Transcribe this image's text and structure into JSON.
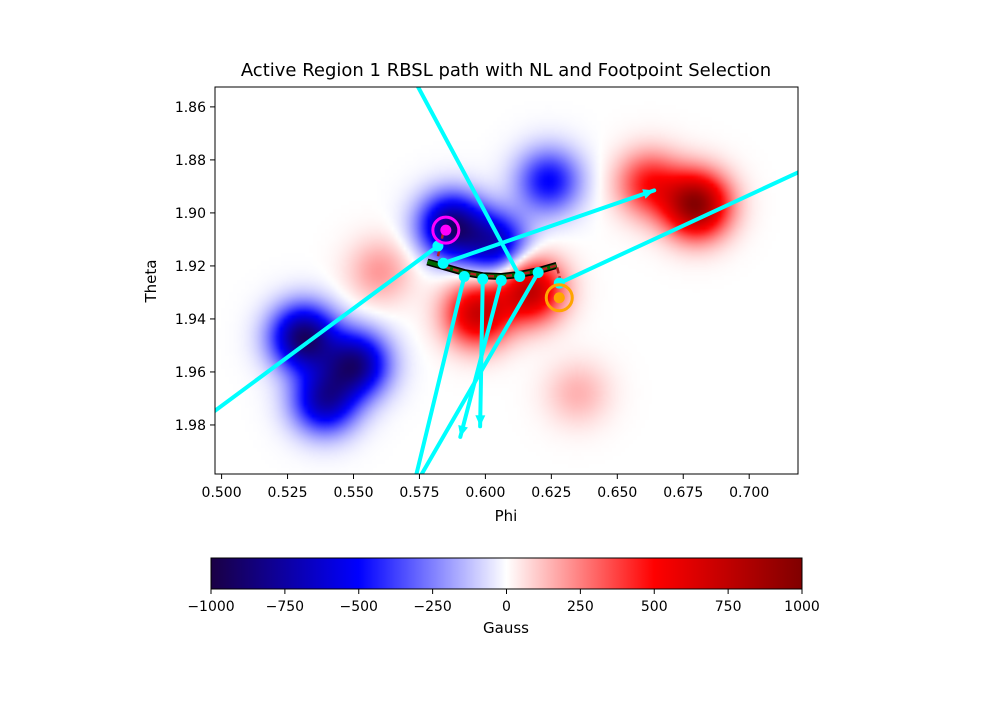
{
  "chart_data": {
    "type": "heatmap",
    "title": "Active Region 1 RBSL path with NL and Footpoint Selection",
    "xlabel": "Phi",
    "ylabel": "Theta",
    "xlim": [
      0.4975,
      0.7185
    ],
    "ylim": [
      1.9985,
      1.8525
    ],
    "y_axis_inverted": true,
    "x_ticks": [
      "0.500",
      "0.525",
      "0.550",
      "0.575",
      "0.600",
      "0.625",
      "0.650",
      "0.675",
      "0.700"
    ],
    "y_ticks": [
      "1.86",
      "1.88",
      "1.90",
      "1.92",
      "1.94",
      "1.96",
      "1.98"
    ],
    "grid": false,
    "colormap": "seismic",
    "colorbar": {
      "label": "Gauss",
      "min": -1000,
      "max": 1000,
      "ticks": [
        "−1000",
        "−750",
        "−500",
        "−250",
        "0",
        "250",
        "500",
        "750",
        "1000"
      ],
      "orientation": "horizontal"
    },
    "field_sources": [
      {
        "phi": 0.531,
        "theta": 1.947,
        "gauss": -900
      },
      {
        "phi": 0.551,
        "theta": 1.957,
        "gauss": -800
      },
      {
        "phi": 0.539,
        "theta": 1.971,
        "gauss": -700
      },
      {
        "phi": 0.587,
        "theta": 1.905,
        "gauss": -850
      },
      {
        "phi": 0.604,
        "theta": 1.912,
        "gauss": -650
      },
      {
        "phi": 0.624,
        "theta": 1.888,
        "gauss": -500
      },
      {
        "phi": 0.597,
        "theta": 1.938,
        "gauss": 700
      },
      {
        "phi": 0.617,
        "theta": 1.929,
        "gauss": 750
      },
      {
        "phi": 0.68,
        "theta": 1.897,
        "gauss": 950
      },
      {
        "phi": 0.662,
        "theta": 1.889,
        "gauss": 450
      },
      {
        "phi": 0.56,
        "theta": 1.922,
        "gauss": 200
      },
      {
        "phi": 0.635,
        "theta": 1.968,
        "gauss": 150
      }
    ],
    "neutral_line": {
      "name": "NL",
      "color": "#006400",
      "points": [
        [
          0.578,
          1.9185
        ],
        [
          0.585,
          1.9205
        ],
        [
          0.592,
          1.9225
        ],
        [
          0.599,
          1.9237
        ],
        [
          0.606,
          1.924
        ],
        [
          0.613,
          1.9232
        ],
        [
          0.62,
          1.9218
        ],
        [
          0.627,
          1.9198
        ]
      ]
    },
    "rbsl_path": {
      "color": "#b22222",
      "points": [
        [
          0.584,
          1.9075
        ],
        [
          0.582,
          1.9165
        ],
        [
          0.585,
          1.9205
        ],
        [
          0.592,
          1.9225
        ],
        [
          0.599,
          1.9237
        ],
        [
          0.606,
          1.924
        ],
        [
          0.613,
          1.9232
        ],
        [
          0.62,
          1.9218
        ],
        [
          0.627,
          1.9198
        ],
        [
          0.629,
          1.928
        ]
      ]
    },
    "footpoints": [
      {
        "phi": 0.585,
        "theta": 1.9065,
        "color": "#ff00ff",
        "polarity": "negative"
      },
      {
        "phi": 0.628,
        "theta": 1.932,
        "color": "#ffa500",
        "polarity": "positive"
      }
    ],
    "vector_color": "#00ffff",
    "vectors": [
      {
        "start": [
          0.582,
          1.9125
        ],
        "end": [
          0.497,
          1.975
        ],
        "head": false
      },
      {
        "start": [
          0.584,
          1.919
        ],
        "end": [
          0.664,
          1.8915
        ],
        "head": true
      },
      {
        "start": [
          0.592,
          1.924
        ],
        "end": [
          0.5735,
          2.0
        ],
        "head": false
      },
      {
        "start": [
          0.599,
          1.925
        ],
        "end": [
          0.598,
          1.9805
        ],
        "head": true
      },
      {
        "start": [
          0.606,
          1.9255
        ],
        "end": [
          0.5905,
          1.9845
        ],
        "head": true
      },
      {
        "start": [
          0.613,
          1.924
        ],
        "end": [
          0.5745,
          1.8525
        ],
        "head": false
      },
      {
        "start": [
          0.62,
          1.9225
        ],
        "end": [
          0.575,
          2.0
        ],
        "head": false
      },
      {
        "start": [
          0.628,
          1.9265
        ],
        "end": [
          0.719,
          1.8845
        ],
        "head": false
      }
    ],
    "vector_base_points": [
      [
        0.582,
        1.9125
      ],
      [
        0.584,
        1.919
      ],
      [
        0.592,
        1.924
      ],
      [
        0.599,
        1.925
      ],
      [
        0.606,
        1.9255
      ],
      [
        0.613,
        1.924
      ],
      [
        0.62,
        1.9225
      ],
      [
        0.628,
        1.9265
      ]
    ]
  }
}
